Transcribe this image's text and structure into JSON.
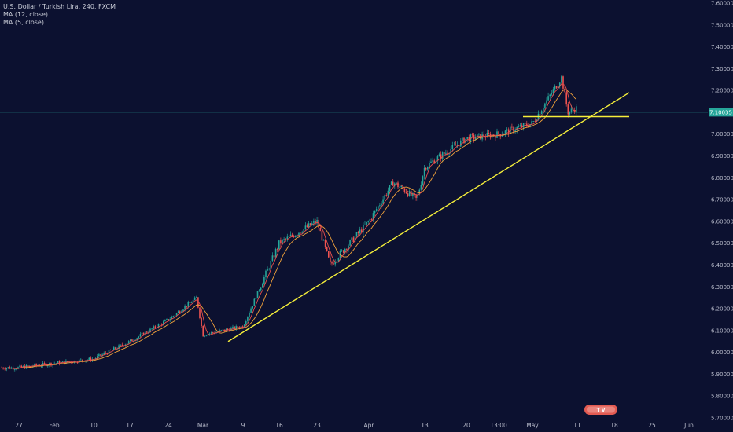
{
  "legend": {
    "symbol": "U.S. Dollar / Turkish Lira, 240, FXCM",
    "ma12": "MA (12, close)",
    "ma5": "MA (5, close)"
  },
  "current_price_label": "7.10035",
  "logo_text": "T V",
  "colors": {
    "background": "#0c1130",
    "up": "#26a69a",
    "down": "#ef5350",
    "ma12": "#f3a33a",
    "ma5": "#e8504c",
    "trendline": "#f5ef3a",
    "price_line": "#26a69a"
  },
  "chart_data": {
    "type": "candlestick",
    "y_axis": {
      "position": "right",
      "range": [
        5.7,
        7.6
      ],
      "ticks": [
        "7.60000",
        "7.50000",
        "7.40000",
        "7.30000",
        "7.20000",
        "7.10000",
        "7.00000",
        "6.90000",
        "6.80000",
        "6.70000",
        "6.60000",
        "6.50000",
        "6.40000",
        "6.30000",
        "6.20000",
        "6.10000",
        "6.00000",
        "5.90000",
        "5.80000",
        "5.70000"
      ]
    },
    "x_axis": {
      "ticks": [
        "27",
        "Feb",
        "10",
        "17",
        "24",
        "Mar",
        "9",
        "16",
        "23",
        "Apr",
        "13",
        "20",
        "13:00",
        "May",
        "11",
        "18",
        "25",
        "Jun"
      ]
    },
    "current_price": 7.10035,
    "series_keypoints": [
      {
        "x": "27 Jan",
        "y": 5.93
      },
      {
        "x": "Feb",
        "y": 5.95
      },
      {
        "x": "10 Feb",
        "y": 5.97
      },
      {
        "x": "17 Feb",
        "y": 6.05
      },
      {
        "x": "24 Feb",
        "y": 6.15
      },
      {
        "x": "27 Feb",
        "y": 6.25
      },
      {
        "x": "Mar",
        "y": 6.08
      },
      {
        "x": "9 Mar",
        "y": 6.12
      },
      {
        "x": "16 Mar",
        "y": 6.5
      },
      {
        "x": "23 Mar",
        "y": 6.6
      },
      {
        "x": "26 Mar",
        "y": 6.4
      },
      {
        "x": "Apr",
        "y": 6.6
      },
      {
        "x": "6 Apr",
        "y": 6.78
      },
      {
        "x": "10 Apr",
        "y": 6.7
      },
      {
        "x": "13 Apr",
        "y": 6.85
      },
      {
        "x": "20 Apr",
        "y": 6.98
      },
      {
        "x": "13:00",
        "y": 7.0
      },
      {
        "x": "May",
        "y": 7.05
      },
      {
        "x": "7 May",
        "y": 7.26
      },
      {
        "x": "8 May",
        "y": 7.1
      },
      {
        "x": "11 May",
        "y": 7.12
      }
    ],
    "trendlines": [
      {
        "name": "rising-support",
        "from": {
          "x": "6 Mar",
          "y": 6.05
        },
        "to": {
          "x": "21 May",
          "y": 7.19
        }
      },
      {
        "name": "horizontal-support",
        "from": {
          "x": "May",
          "y": 7.08
        },
        "to": {
          "x": "21 May",
          "y": 7.08
        }
      }
    ]
  }
}
